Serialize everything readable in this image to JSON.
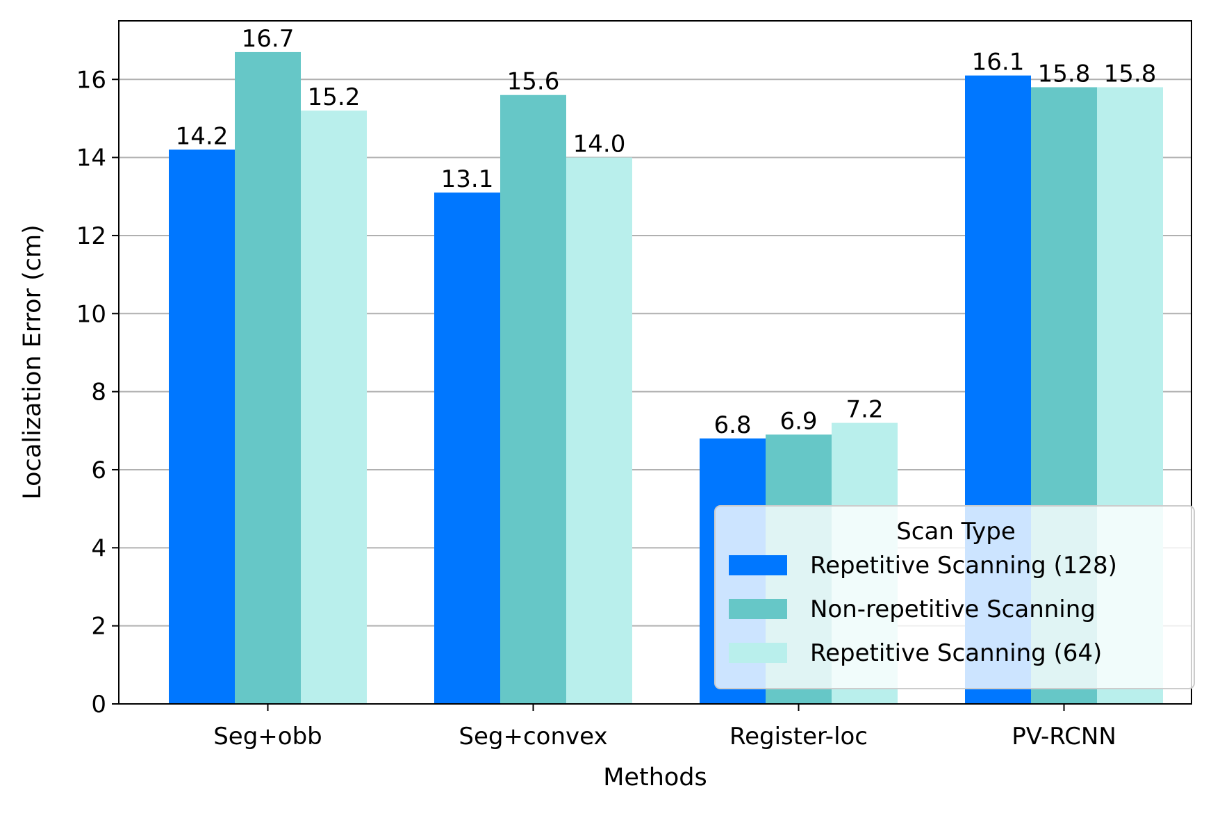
{
  "chart_data": {
    "type": "bar",
    "title": "",
    "xlabel": "Methods",
    "ylabel": "Localization Error (cm)",
    "categories": [
      "Seg+obb",
      "Seg+convex",
      "Register-loc",
      "PV-RCNN"
    ],
    "series": [
      {
        "name": "Repetitive Scanning (128)",
        "color": "#0077ff",
        "values": [
          14.2,
          13.1,
          6.8,
          16.1
        ],
        "labels": [
          "14.2",
          "13.1",
          "6.8",
          "16.1"
        ]
      },
      {
        "name": "Non-repetitive Scanning",
        "color": "#66c7c7",
        "values": [
          16.7,
          15.6,
          6.9,
          15.8
        ],
        "labels": [
          "16.7",
          "15.6",
          "6.9",
          "15.8"
        ]
      },
      {
        "name": "Repetitive Scanning (64)",
        "color": "#b9efec",
        "values": [
          15.2,
          14.0,
          7.2,
          15.8
        ],
        "labels": [
          "15.2",
          "14.0",
          "7.2",
          "15.8"
        ]
      }
    ],
    "ylim": [
      0,
      17.5
    ],
    "yticks": [
      0,
      2,
      4,
      6,
      8,
      10,
      12,
      14,
      16
    ],
    "grid": "y",
    "legend": {
      "title": "Scan Type",
      "placement": "lower-right"
    }
  }
}
